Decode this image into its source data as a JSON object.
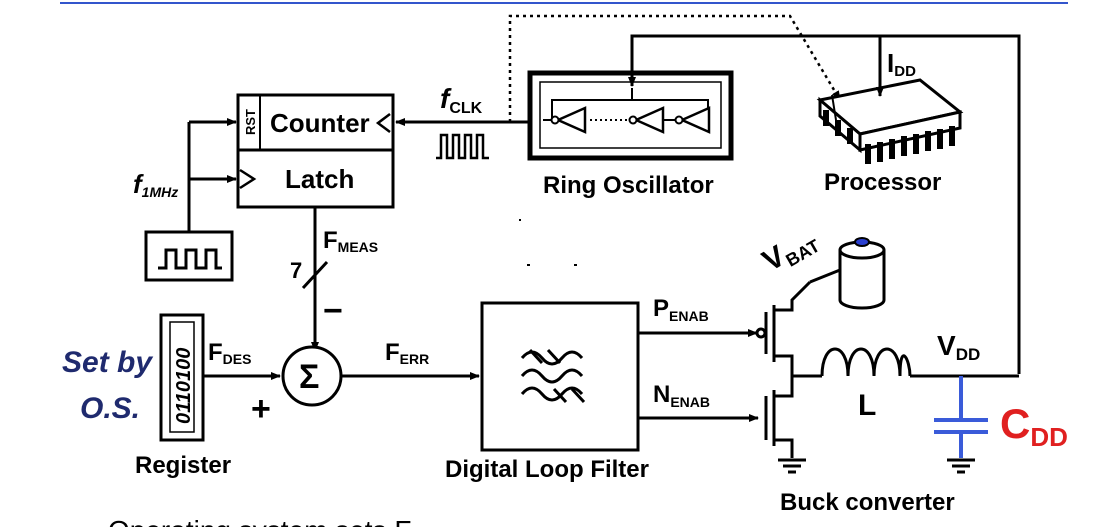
{
  "labels": {
    "counter": "Counter",
    "rst": "RST",
    "latch": "Latch",
    "f_1mhz_main": "f",
    "f_1mhz_sub": "1MHz",
    "f_clk_main": "f",
    "f_clk_sub": "CLK",
    "ring_oscillator": "Ring Oscillator",
    "processor": "Processor",
    "i_dd_main": "I",
    "i_dd_sub": "DD",
    "v_bat_main": "V",
    "v_bat_sub": "BAT",
    "f_meas_main": "F",
    "f_meas_sub": "MEAS",
    "bus_width": "7",
    "minus": "−",
    "plus": "+",
    "sigma": "Σ",
    "f_des_main": "F",
    "f_des_sub": "DES",
    "f_err_main": "F",
    "f_err_sub": "ERR",
    "register_value": "0110100",
    "register": "Register",
    "set_by_line1": "Set by",
    "set_by_line2": "O.S.",
    "digital_loop_filter": "Digital Loop Filter",
    "p_enab_main": "P",
    "p_enab_sub": "ENAB",
    "n_enab_main": "N",
    "n_enab_sub": "ENAB",
    "inductor": "L",
    "v_dd_main": "V",
    "v_dd_sub": "DD",
    "c_dd_main": "C",
    "c_dd_sub": "DD",
    "buck_converter": "Buck converter",
    "cut_off_text": "Operating system sets F"
  },
  "colors": {
    "top_rule": "#3355cc",
    "set_by_text": "#1f2a6e",
    "capacitor": "#3a5bd9",
    "c_dd_label": "#e02020",
    "battery_cap": "#2a3fd0"
  }
}
